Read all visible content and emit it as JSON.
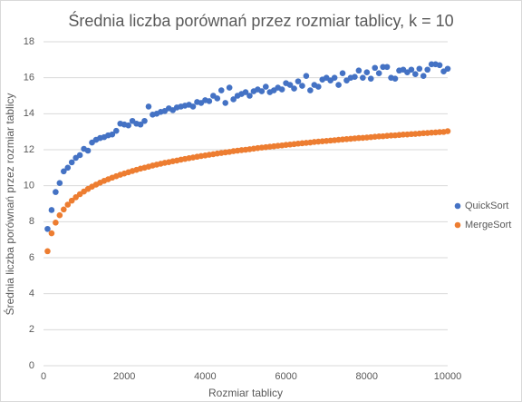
{
  "chart_data": {
    "type": "scatter",
    "title": "Średnia liczba porównań przez rozmiar tablicy, k = 10",
    "x_label": "Rozmiar tablicy",
    "y_label": "Średnia liczba porównań przez rozmiar tablicy",
    "x": [
      100,
      200,
      300,
      400,
      500,
      600,
      700,
      800,
      900,
      1000,
      1100,
      1200,
      1300,
      1400,
      1500,
      1600,
      1700,
      1800,
      1900,
      2000,
      2100,
      2200,
      2300,
      2400,
      2500,
      2600,
      2700,
      2800,
      2900,
      3000,
      3100,
      3200,
      3300,
      3400,
      3500,
      3600,
      3700,
      3800,
      3900,
      4000,
      4100,
      4200,
      4300,
      4400,
      4500,
      4600,
      4700,
      4800,
      4900,
      5000,
      5100,
      5200,
      5300,
      5400,
      5500,
      5600,
      5700,
      5800,
      5900,
      6000,
      6100,
      6200,
      6300,
      6400,
      6500,
      6600,
      6700,
      6800,
      6900,
      7000,
      7100,
      7200,
      7300,
      7400,
      7500,
      7600,
      7700,
      7800,
      7900,
      8000,
      8100,
      8200,
      8300,
      8400,
      8500,
      8600,
      8700,
      8800,
      8900,
      9000,
      9100,
      9200,
      9300,
      9400,
      9500,
      9600,
      9700,
      9800,
      9900,
      10000
    ],
    "series": [
      {
        "name": "QuickSort",
        "color": "#4472c4",
        "values": [
          7.6,
          8.65,
          9.65,
          10.15,
          10.8,
          11.0,
          11.3,
          11.55,
          11.7,
          12.05,
          11.95,
          12.4,
          12.55,
          12.65,
          12.7,
          12.8,
          12.85,
          13.05,
          13.45,
          13.4,
          13.35,
          13.6,
          13.45,
          13.4,
          13.6,
          14.4,
          13.95,
          14.0,
          14.1,
          14.15,
          14.3,
          14.2,
          14.35,
          14.4,
          14.45,
          14.5,
          14.4,
          14.65,
          14.6,
          14.75,
          14.7,
          15.0,
          14.85,
          15.3,
          14.6,
          15.45,
          14.8,
          15.0,
          15.1,
          15.2,
          15.0,
          15.25,
          15.35,
          15.25,
          15.5,
          15.2,
          15.3,
          15.45,
          15.35,
          15.7,
          15.6,
          15.4,
          15.8,
          15.55,
          16.1,
          15.3,
          15.6,
          15.5,
          15.9,
          16.0,
          15.85,
          16.0,
          15.6,
          16.25,
          15.85,
          16.0,
          16.05,
          16.4,
          16.0,
          16.3,
          15.95,
          16.55,
          16.25,
          16.6,
          16.6,
          16.0,
          15.95,
          16.4,
          16.45,
          16.3,
          16.45,
          16.2,
          16.5,
          16.1,
          16.45,
          16.75,
          16.75,
          16.7,
          16.35,
          16.5
        ]
      },
      {
        "name": "MergeSort",
        "color": "#ed7d31",
        "values": [
          6.36,
          7.36,
          7.95,
          8.36,
          8.68,
          8.95,
          9.17,
          9.36,
          9.53,
          9.68,
          9.82,
          9.95,
          10.06,
          10.17,
          10.27,
          10.36,
          10.45,
          10.53,
          10.61,
          10.68,
          10.75,
          10.82,
          10.88,
          10.95,
          11.0,
          11.06,
          11.12,
          11.17,
          11.22,
          11.27,
          11.31,
          11.36,
          11.4,
          11.45,
          11.49,
          11.53,
          11.57,
          11.61,
          11.65,
          11.68,
          11.72,
          11.75,
          11.79,
          11.82,
          11.85,
          11.88,
          11.92,
          11.95,
          11.98,
          12.0,
          12.03,
          12.06,
          12.09,
          12.12,
          12.14,
          12.17,
          12.19,
          12.22,
          12.24,
          12.27,
          12.29,
          12.31,
          12.34,
          12.36,
          12.38,
          12.4,
          12.43,
          12.45,
          12.47,
          12.49,
          12.51,
          12.53,
          12.55,
          12.57,
          12.59,
          12.61,
          12.63,
          12.65,
          12.66,
          12.68,
          12.7,
          12.72,
          12.74,
          12.75,
          12.77,
          12.79,
          12.8,
          12.82,
          12.84,
          12.85,
          12.87,
          12.88,
          12.9,
          12.92,
          12.93,
          12.95,
          12.96,
          12.98,
          12.99,
          13.03
        ]
      }
    ],
    "xlim": [
      0,
      10000
    ],
    "xticks": [
      0,
      2000,
      4000,
      6000,
      8000,
      10000
    ],
    "ylim": [
      0,
      18
    ],
    "yticks": [
      0,
      2,
      4,
      6,
      8,
      10,
      12,
      14,
      16,
      18
    ],
    "grid": true,
    "legend": "right"
  }
}
